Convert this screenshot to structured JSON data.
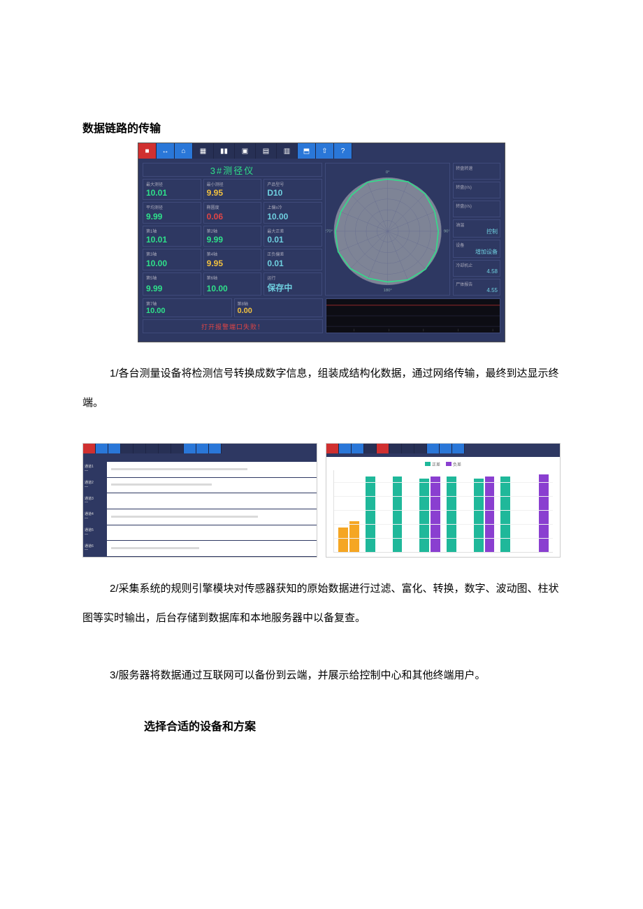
{
  "heading1": "数据链路的传输",
  "dashboard": {
    "title": "3#测径仪",
    "toolbar_colors": {
      "red": "#d03030",
      "blue": "#2a77d8",
      "dark": "#273055"
    },
    "metrics": [
      [
        {
          "label": "最大测径",
          "value": "10.01",
          "color": "v-green"
        },
        {
          "label": "最小测径",
          "value": "9.95",
          "color": "v-yellow"
        },
        {
          "label": "产品型号",
          "value": "D10",
          "color": "v-cyan"
        }
      ],
      [
        {
          "label": "平均测径",
          "value": "9.99",
          "color": "v-green"
        },
        {
          "label": "椭圆度",
          "value": "0.06",
          "color": "v-red"
        },
        {
          "label": "上偏±冷",
          "value": "10.00",
          "color": "v-cyan"
        }
      ],
      [
        {
          "label": "第1轴",
          "value": "10.01",
          "color": "v-green"
        },
        {
          "label": "第2轴",
          "value": "9.99",
          "color": "v-green"
        },
        {
          "label": "最大正差",
          "value": "0.01",
          "color": "v-cyan"
        }
      ],
      [
        {
          "label": "第3轴",
          "value": "10.00",
          "color": "v-green"
        },
        {
          "label": "第4轴",
          "value": "9.95",
          "color": "v-yellow"
        },
        {
          "label": "正负偏差",
          "value": "0.01",
          "color": "v-cyan"
        }
      ],
      [
        {
          "label": "第5轴",
          "value": "9.99",
          "color": "v-green"
        },
        {
          "label": "第6轴",
          "value": "10.00",
          "color": "v-green"
        },
        {
          "label": "运行",
          "value": "保存中",
          "color": "v-cyan"
        }
      ]
    ],
    "bottom_metrics": [
      {
        "label": "第7轴",
        "value": "10.00",
        "color": "v-green"
      },
      {
        "label": "第8轴",
        "value": "0.00",
        "color": "v-yellow"
      }
    ],
    "alert_text": "打开报警端口失败！",
    "side": [
      {
        "label": "转盘转速",
        "value": ""
      },
      {
        "label": "转盘(r/s)",
        "value": ""
      },
      {
        "label": "转盘(r/s)",
        "value": ""
      },
      {
        "label": "油温",
        "value": "控制"
      },
      {
        "label": "设备",
        "value": "增加设备"
      },
      {
        "label": "冷却机止",
        "value": "4.58"
      },
      {
        "label": "尸体报告",
        "value": "4.55"
      }
    ],
    "radar": {
      "rings": 5,
      "spokes": 16,
      "outline_color": "#2fe08a",
      "grid_color": "#6a7090",
      "bg_fill": "#9a9da8"
    }
  },
  "para1": "1/各台测量设备将检测信号转换成数字信息，组装成结构化数据，通过网络传输，最终到达显示终端。",
  "mini_left": {
    "row_labels": [
      "通道1",
      "通道2",
      "通道3",
      "通道4",
      "通道5",
      "通道6"
    ],
    "track_fill_pct": [
      65,
      48,
      0,
      70,
      0,
      42
    ]
  },
  "mini_right": {
    "legend": [
      {
        "label": "正差",
        "color": "#1fb89a"
      },
      {
        "label": "负差",
        "color": "#8a3fd0"
      }
    ],
    "groups": [
      {
        "a": 30,
        "a_color": "#f5a623",
        "b": 38,
        "b_color": "#f5a623"
      },
      {
        "a": 92,
        "a_color": "#1fb89a",
        "b": 0,
        "b_color": "#8a3fd0"
      },
      {
        "a": 92,
        "a_color": "#1fb89a",
        "b": 0,
        "b_color": "#8a3fd0"
      },
      {
        "a": 90,
        "a_color": "#1fb89a",
        "b": 92,
        "b_color": "#8a3fd0"
      },
      {
        "a": 92,
        "a_color": "#1fb89a",
        "b": 0,
        "b_color": "#8a3fd0"
      },
      {
        "a": 90,
        "a_color": "#1fb89a",
        "b": 92,
        "b_color": "#8a3fd0"
      },
      {
        "a": 92,
        "a_color": "#1fb89a",
        "b": 0,
        "b_color": "#8a3fd0"
      },
      {
        "a": 0,
        "a_color": "#1fb89a",
        "b": 95,
        "b_color": "#8a3fd0"
      }
    ],
    "ymax": 100
  },
  "para2": "2/采集系统的规则引擎模块对传感器获知的原始数据进行过滤、富化、转换，数字、波动图、柱状图等实时输出，后台存储到数据库和本地服务器中以备复查。",
  "para3": "3/服务器将数据通过互联网可以备份到云端，并展示给控制中心和其他终端用户。",
  "heading2": "选择合适的设备和方案"
}
